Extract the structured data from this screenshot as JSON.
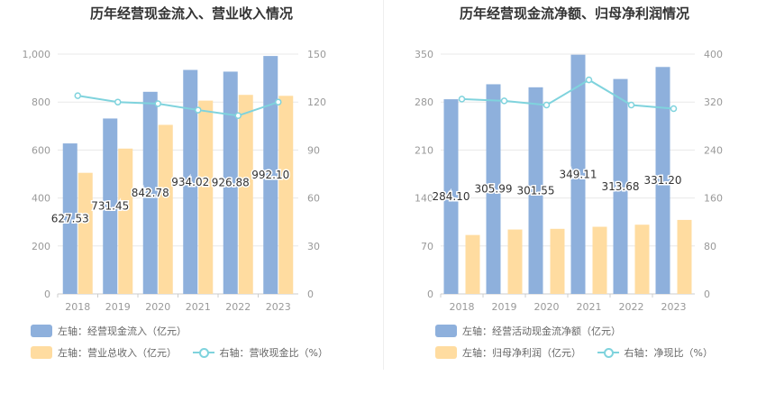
{
  "colors": {
    "blue": "#8eb0dc",
    "orange": "#ffdca0",
    "line": "#7fd3dd",
    "grid": "#e8e8e8",
    "axis_text": "#999999",
    "label_text": "#333333"
  },
  "chart_data": [
    {
      "type": "bar",
      "title": "历年经营现金流入、营业收入情况",
      "categories": [
        "2018",
        "2019",
        "2020",
        "2021",
        "2022",
        "2023"
      ],
      "left_axis": {
        "min": 0,
        "max": 1000,
        "ticks": [
          "0",
          "200",
          "400",
          "600",
          "800",
          "1,000"
        ]
      },
      "right_axis": {
        "min": 0,
        "max": 150,
        "ticks": [
          "0",
          "30",
          "60",
          "90",
          "120",
          "150"
        ]
      },
      "series": [
        {
          "name": "左轴：经营现金流入（亿元）",
          "kind": "bar",
          "axis": "left",
          "values": [
            627.53,
            731.45,
            842.78,
            934.02,
            926.88,
            992.1
          ],
          "labels": [
            "627.53",
            "731.45",
            "842.78",
            "934.02",
            "926.88",
            "992.10"
          ]
        },
        {
          "name": "左轴：营业总收入（亿元）",
          "kind": "bar",
          "axis": "left",
          "values": [
            505,
            606,
            705,
            806,
            830,
            826
          ]
        },
        {
          "name": "右轴：营收现金比（%）",
          "kind": "line",
          "axis": "right",
          "values": [
            124,
            120,
            119,
            115,
            111.5,
            120
          ]
        }
      ],
      "grid": true,
      "legend_position": "bottom"
    },
    {
      "type": "bar",
      "title": "历年经营现金流净额、归母净利润情况",
      "categories": [
        "2018",
        "2019",
        "2020",
        "2021",
        "2022",
        "2023"
      ],
      "left_axis": {
        "min": 0,
        "max": 350,
        "ticks": [
          "0",
          "70",
          "140",
          "210",
          "280",
          "350"
        ]
      },
      "right_axis": {
        "min": 0,
        "max": 400,
        "ticks": [
          "0",
          "80",
          "160",
          "240",
          "320",
          "400"
        ]
      },
      "series": [
        {
          "name": "左轴：经营活动现金流净额（亿元）",
          "kind": "bar",
          "axis": "left",
          "values": [
            284.1,
            305.99,
            301.55,
            349.11,
            313.68,
            331.2
          ],
          "labels": [
            "284.10",
            "305.99",
            "301.55",
            "349.11",
            "313.68",
            "331.20"
          ]
        },
        {
          "name": "左轴：归母净利润（亿元）",
          "kind": "bar",
          "axis": "left",
          "values": [
            86,
            94,
            95,
            98,
            101,
            108
          ]
        },
        {
          "name": "右轴：净现比（%）",
          "kind": "line",
          "axis": "right",
          "values": [
            325,
            322,
            315,
            357,
            315,
            309
          ]
        }
      ],
      "grid": true,
      "legend_position": "bottom"
    }
  ]
}
